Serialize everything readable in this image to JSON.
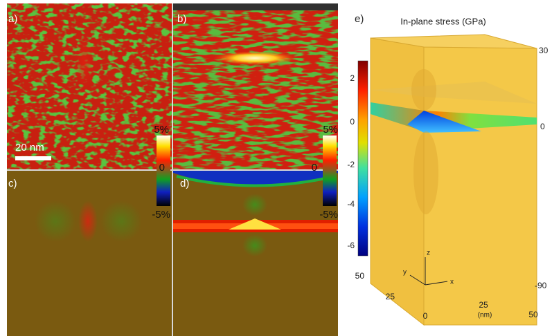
{
  "panels": [
    {
      "label": "a)"
    },
    {
      "label": "b)"
    },
    {
      "label": "c)"
    },
    {
      "label": "d)"
    }
  ],
  "scale_bar": "20 nm",
  "strain_colorbars": [
    {
      "ticks": [
        "5%",
        "0",
        "-5%"
      ]
    },
    {
      "ticks": [
        "5%",
        "0",
        "-5%"
      ]
    }
  ],
  "panel_e": {
    "label": "e)",
    "title": "In-plane stress (GPa)",
    "colorbar_ticks": [
      "2",
      "0",
      "-2",
      "-4",
      "-6"
    ],
    "z_ticks": [
      "30",
      "0",
      "-90"
    ],
    "y_ticks": [
      "50",
      "25",
      "0"
    ],
    "x_ticks": [
      "25",
      "50"
    ],
    "x_unit": "(nm)",
    "axes": [
      "z",
      "y",
      "x"
    ]
  }
}
